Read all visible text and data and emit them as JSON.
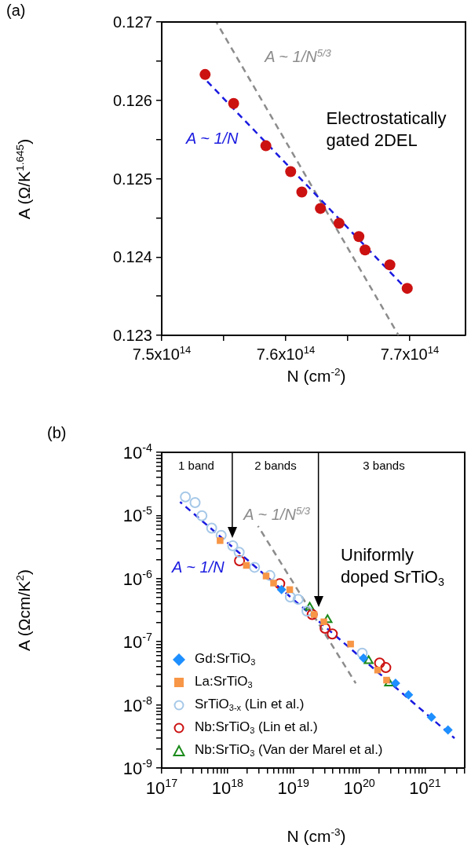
{
  "chart_data": [
    {
      "type": "scatter",
      "title": "(a)",
      "xlabel": "N (cm$^{-2}$)",
      "ylabel": "A (Ω/K$^{1.645}$)",
      "xlim": [
        750000000000000.0,
        774500000000000.0
      ],
      "xticks": [
        {
          "value": 750000000000000.0,
          "label": "7.5x10$^{14}$"
        },
        {
          "value": 755000000000000.0,
          "label": null
        },
        {
          "value": 760000000000000.0,
          "label": "7.6x10$^{14}$"
        },
        {
          "value": 765000000000000.0,
          "label": null
        },
        {
          "value": 770000000000000.0,
          "label": "7.7x10$^{14}$"
        }
      ],
      "ylim": [
        0.123,
        0.127
      ],
      "yticks": [
        0.123,
        {
          "value": 0.1235,
          "label": null
        },
        0.124,
        {
          "value": 0.1245,
          "label": null
        },
        0.125,
        {
          "value": 0.1255,
          "label": null
        },
        0.126,
        {
          "value": 0.1265,
          "label": null
        },
        0.127
      ],
      "series": [
        {
          "marker": "circle",
          "color": "#cc1111",
          "x": [
            753500000000000.0,
            755800000000000.0,
            758400000000000.0,
            760400000000000.0,
            761300000000000.0,
            762800000000000.0,
            764300000000000.0,
            765900000000000.0,
            766400000000000.0,
            768400000000000.0,
            769800000000000.0
          ],
          "values": [
            0.12633,
            0.12596,
            0.12542,
            0.12509,
            0.12483,
            0.12462,
            0.12443,
            0.12426,
            0.12409,
            0.1239,
            0.1236
          ]
        },
        {
          "type": "line",
          "name": "A ~ 1/N",
          "marker": "none",
          "line_style": "dashed",
          "color": "#1a1ae0",
          "x": [
            753500000000000.0,
            769800000000000.0
          ],
          "values": [
            0.12627,
            0.12358
          ]
        },
        {
          "type": "line",
          "name": "A ~ 1/N$^{5/3}$",
          "marker": "none",
          "line_style": "dashed",
          "color": "#8c8c8c",
          "x": [
            754400000000000.0,
            769100000000000.0
          ],
          "values": [
            0.127,
            0.123
          ]
        }
      ],
      "annotations": [
        "Electrostatically\ngated 2DEL"
      ]
    },
    {
      "type": "scatter",
      "title": "(b)",
      "xlabel": "N (cm$^{-3}$)",
      "ylabel": "A (Ωcm/K$^{2}$)",
      "log": "xy",
      "legend": "bottom left",
      "xlim": [
        1e+17,
        4e+21
      ],
      "xticks": [
        {
          "value": 1e+17,
          "label": "10$^{17}$"
        },
        {
          "value": 2e+17,
          "label": null
        },
        {
          "value": 3e+17,
          "label": null
        },
        {
          "value": 4e+17,
          "label": null
        },
        {
          "value": 5e+17,
          "label": null
        },
        {
          "value": 6e+17,
          "label": null
        },
        {
          "value": 7e+17,
          "label": null
        },
        {
          "value": 8e+17,
          "label": null
        },
        {
          "value": 9e+17,
          "label": null
        },
        {
          "value": 1e+18,
          "label": "10$^{18}$"
        },
        {
          "value": 2e+18,
          "label": null
        },
        {
          "value": 3e+18,
          "label": null
        },
        {
          "value": 4e+18,
          "label": null
        },
        {
          "value": 5e+18,
          "label": null
        },
        {
          "value": 6e+18,
          "label": null
        },
        {
          "value": 7e+18,
          "label": null
        },
        {
          "value": 8e+18,
          "label": null
        },
        {
          "value": 9e+18,
          "label": null
        },
        {
          "value": 1e+19,
          "label": "10$^{19}$"
        },
        {
          "value": 2e+19,
          "label": null
        },
        {
          "value": 3e+19,
          "label": null
        },
        {
          "value": 4e+19,
          "label": null
        },
        {
          "value": 5e+19,
          "label": null
        },
        {
          "value": 6e+19,
          "label": null
        },
        {
          "value": 7e+19,
          "label": null
        },
        {
          "value": 8e+19,
          "label": null
        },
        {
          "value": 9e+19,
          "label": null
        },
        {
          "value": 1e+20,
          "label": "10$^{20}$"
        },
        {
          "value": 2e+20,
          "label": null
        },
        {
          "value": 3e+20,
          "label": null
        },
        {
          "value": 4e+20,
          "label": null
        },
        {
          "value": 5e+20,
          "label": null
        },
        {
          "value": 6e+20,
          "label": null
        },
        {
          "value": 7e+20,
          "label": null
        },
        {
          "value": 8e+20,
          "label": null
        },
        {
          "value": 9e+20,
          "label": null
        },
        {
          "value": 1e+21,
          "label": "10$^{21}$"
        },
        {
          "value": 2e+21,
          "label": null
        },
        {
          "value": 3e+21,
          "label": null
        },
        {
          "value": 4e+21,
          "label": null
        }
      ],
      "ylim": [
        1e-09,
        0.0001
      ],
      "yticks": [
        {
          "value": 1e-09,
          "label": "10$^{-9}$"
        },
        {
          "value": 2e-09,
          "label": null
        },
        {
          "value": 3e-09,
          "label": null
        },
        {
          "value": 4e-09,
          "label": null
        },
        {
          "value": 5e-09,
          "label": null
        },
        {
          "value": 6e-09,
          "label": null
        },
        {
          "value": 7e-09,
          "label": null
        },
        {
          "value": 8e-09,
          "label": null
        },
        {
          "value": 9e-09,
          "label": null
        },
        {
          "value": 1e-08,
          "label": "10$^{-8}$"
        },
        {
          "value": 2e-08,
          "label": null
        },
        {
          "value": 3e-08,
          "label": null
        },
        {
          "value": 4e-08,
          "label": null
        },
        {
          "value": 5e-08,
          "label": null
        },
        {
          "value": 6e-08,
          "label": null
        },
        {
          "value": 7e-08,
          "label": null
        },
        {
          "value": 8e-08,
          "label": null
        },
        {
          "value": 9e-08,
          "label": null
        },
        {
          "value": 1e-07,
          "label": "10$^{-7}$"
        },
        {
          "value": 2e-07,
          "label": null
        },
        {
          "value": 3e-07,
          "label": null
        },
        {
          "value": 4e-07,
          "label": null
        },
        {
          "value": 5e-07,
          "label": null
        },
        {
          "value": 6e-07,
          "label": null
        },
        {
          "value": 7e-07,
          "label": null
        },
        {
          "value": 8e-07,
          "label": null
        },
        {
          "value": 9e-07,
          "label": null
        },
        {
          "value": 1e-06,
          "label": "10$^{-6}$"
        },
        {
          "value": 2e-06,
          "label": null
        },
        {
          "value": 3e-06,
          "label": null
        },
        {
          "value": 4e-06,
          "label": null
        },
        {
          "value": 5e-06,
          "label": null
        },
        {
          "value": 6e-06,
          "label": null
        },
        {
          "value": 7e-06,
          "label": null
        },
        {
          "value": 8e-06,
          "label": null
        },
        {
          "value": 9e-06,
          "label": null
        },
        {
          "value": 1e-05,
          "label": "10$^{-5}$"
        },
        {
          "value": 2e-05,
          "label": null
        },
        {
          "value": 3e-05,
          "label": null
        },
        {
          "value": 4e-05,
          "label": null
        },
        {
          "value": 5e-05,
          "label": null
        },
        {
          "value": 6e-05,
          "label": null
        },
        {
          "value": 7e-05,
          "label": null
        },
        {
          "value": 8e-05,
          "label": null
        },
        {
          "value": 9e-05,
          "label": null
        },
        {
          "value": 0.0001,
          "label": "10$^{-4}$"
        }
      ],
      "series": [
        {
          "name": "Gd:SrTiO$_{3}$",
          "marker": "diamond",
          "color": "#1e8fff",
          "x": [
            6.6e+18,
            1.16e+20,
            3.56e+20,
            5.6e+20,
            1.25e+21,
            2.23e+21
          ],
          "values": [
            6.7e-07,
            5.5e-08,
            2.2e-08,
            1.44e-08,
            6.4e-09,
            4e-09
          ]
        },
        {
          "name": "La:SrTiO$_{3}$",
          "marker": "square",
          "color": "#f79646",
          "x": [
            7.7e+17,
            1.93e+18,
            3.85e+18,
            5e+18,
            8.8e+18,
            2.06e+19,
            2.9e+19,
            7.4e+19,
            1.9e+20,
            2.6e+20
          ],
          "values": [
            4e-06,
            1.62e-06,
            1.1e-06,
            8.5e-07,
            6.7e-07,
            2.7e-07,
            2.07e-07,
            9.2e-08,
            3.56e-08,
            2.47e-08
          ]
        },
        {
          "name": "SrTiO$_{3-x}$ (Lin et al.)",
          "marker": "circle",
          "color": "#a6c8e8",
          "x": [
            2.29e+17,
            3.21e+17,
            4.08e+17,
            5.74e+17,
            8e+17,
            1.2e+18,
            1.5e+18,
            2.57e+18,
            4.4e+18,
            9e+18,
            1.18e+19,
            1.61e+19,
            1.11e+20
          ],
          "values": [
            1.97e-05,
            1.6e-05,
            9.9e-06,
            6.3e-06,
            4.85e-06,
            3.31e-06,
            2.61e-06,
            1.51e-06,
            1.12e-06,
            5.1e-07,
            4.7e-07,
            3.05e-07,
            6.6e-08
          ]
        },
        {
          "name": "Nb:SrTiO$_{3}$ (Lin et al.)",
          "marker": "circle",
          "color": "#cc1111",
          "x": [
            1.52e+18,
            6.2e+18,
            1.93e+19,
            3.03e+19,
            3.9e+19,
            2.04e+20,
            2.53e+20
          ],
          "values": [
            1.92e-06,
            8.3e-07,
            2.7e-07,
            1.64e-07,
            1.33e-07,
            4.6e-08,
            3.9e-08
          ]
        },
        {
          "name": "Nb:SrTiO$_{3}$ (Van der Marel et al.)",
          "marker": "triangle",
          "color": "#1a8a1a",
          "x": [
            1.77e+19,
            3.3e+19,
            1.39e+20,
            2.84e+20
          ],
          "values": [
            3.5e-07,
            2.22e-07,
            5e-08,
            2.2e-08
          ]
        },
        {
          "type": "line",
          "name": "A ~ 1/N",
          "marker": "none",
          "line_style": "dashed",
          "color": "#1a1ae0",
          "x": [
            1.9e+17,
            2.8e+21
          ],
          "values": [
            1.64e-05,
            2.97e-09
          ]
        },
        {
          "type": "line",
          "name": "A ~ 1/N$^{5/3}$",
          "marker": "none",
          "line_style": "dashed",
          "color": "#8c8c8c",
          "x": [
            2.9e+18,
            8.85e+19
          ],
          "values": [
            6.8e-06,
            2.2e-08
          ]
        }
      ],
      "ref_lines": [
        {
          "axis": "x",
          "value": 1.18e+18,
          "color": "#000000"
        },
        {
          "axis": "x",
          "value": 2.4e+19,
          "color": "#000000"
        }
      ],
      "annotations": [
        "1 band",
        "2 bands",
        "3 bands",
        "Uniformly\ndoped SrTiO$_{3}$"
      ]
    }
  ]
}
